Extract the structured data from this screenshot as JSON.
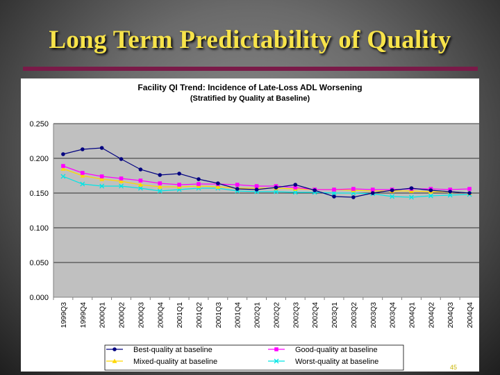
{
  "slide": {
    "title": "Long Term Predictability of Quality",
    "page_number": "45"
  },
  "chart_data": {
    "type": "line",
    "title": "Facility QI Trend: Incidence of Late-Loss ADL Worsening",
    "subtitle": "(Stratified by Quality at Baseline)",
    "xlabel": "",
    "ylabel": "",
    "ylim": [
      0,
      0.25
    ],
    "yticks": [
      "0.000",
      "0.050",
      "0.100",
      "0.150",
      "0.200",
      "0.250"
    ],
    "grid": "horizontal",
    "legend_position": "bottom",
    "x": [
      "1999Q3",
      "1999Q4",
      "2000Q1",
      "2000Q2",
      "2000Q3",
      "2000Q4",
      "2001Q1",
      "2001Q2",
      "2001Q3",
      "2001Q4",
      "2002Q1",
      "2002Q2",
      "2002Q3",
      "2002Q4",
      "2003Q1",
      "2003Q2",
      "2003Q3",
      "2003Q4",
      "2004Q1",
      "2004Q2",
      "2004Q3",
      "2004Q4"
    ],
    "series": [
      {
        "name": "Best-quality at baseline",
        "color": "#000080",
        "marker": "diamond",
        "values": [
          0.206,
          0.213,
          0.215,
          0.199,
          0.184,
          0.176,
          0.178,
          0.17,
          0.164,
          0.156,
          0.155,
          0.158,
          0.162,
          0.154,
          0.145,
          0.144,
          0.15,
          0.154,
          0.157,
          0.154,
          0.152,
          0.15
        ]
      },
      {
        "name": "Good-quality at baseline",
        "color": "#ff00ff",
        "marker": "square",
        "values": [
          0.189,
          0.179,
          0.174,
          0.171,
          0.168,
          0.164,
          0.162,
          0.163,
          0.163,
          0.162,
          0.16,
          0.16,
          0.158,
          0.155,
          0.155,
          0.156,
          0.155,
          0.155,
          0.156,
          0.156,
          0.155,
          0.156
        ]
      },
      {
        "name": "Mixed-quality at baseline",
        "color": "#ffd700",
        "marker": "triangle",
        "values": [
          0.185,
          0.175,
          0.17,
          0.167,
          0.162,
          0.159,
          0.159,
          0.16,
          0.159,
          0.157,
          0.157,
          0.157,
          0.156,
          0.155,
          0.155,
          0.154,
          0.153,
          0.153,
          0.153,
          0.152,
          0.152,
          0.15
        ]
      },
      {
        "name": "Worst-quality at baseline",
        "color": "#00e5e5",
        "marker": "x",
        "values": [
          0.174,
          0.163,
          0.16,
          0.16,
          0.157,
          0.153,
          0.155,
          0.157,
          0.157,
          0.153,
          0.152,
          0.152,
          0.151,
          0.151,
          0.15,
          0.15,
          0.149,
          0.145,
          0.144,
          0.146,
          0.147,
          0.148
        ]
      }
    ]
  }
}
